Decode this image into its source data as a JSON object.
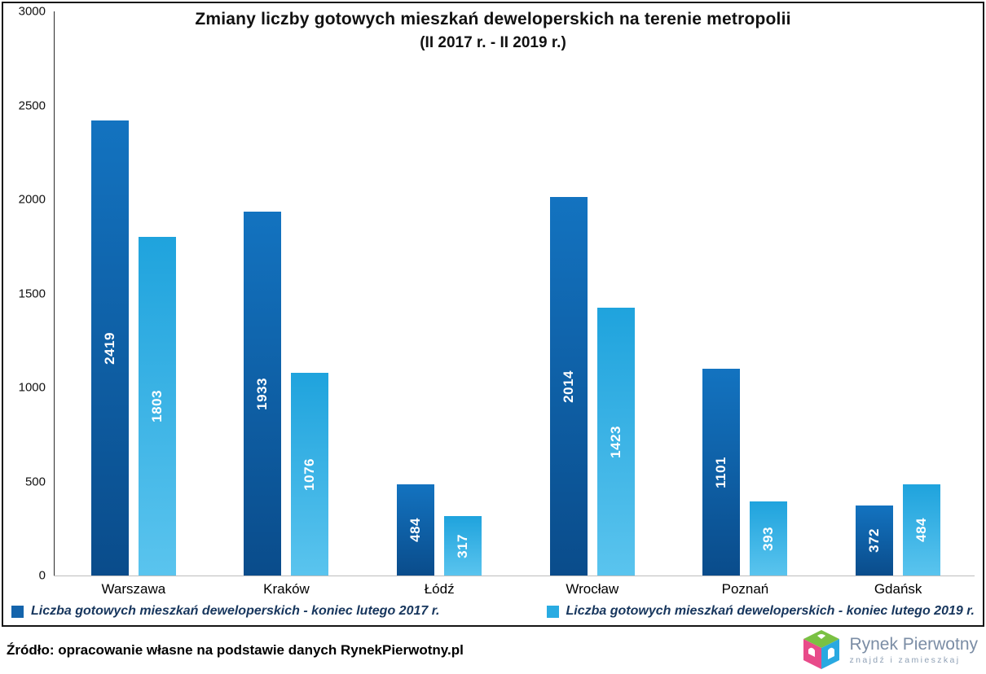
{
  "chart_data": {
    "type": "bar",
    "title": "Zmiany liczby gotowych mieszkań deweloperskich na terenie metropolii",
    "subtitle": "(II 2017 r. - II 2019 r.)",
    "categories": [
      "Warszawa",
      "Kraków",
      "Łódź",
      "Wrocław",
      "Poznań",
      "Gdańsk"
    ],
    "series": [
      {
        "name": "Liczba gotowych mieszkań deweloperskich - koniec lutego 2017 r.",
        "color": "#1464ac",
        "gradient_top": "#1373c0",
        "gradient_bottom": "#0a4c8b",
        "values": [
          2419,
          1933,
          484,
          2014,
          1101,
          372
        ]
      },
      {
        "name": "Liczba gotowych mieszkań deweloperskich - koniec lutego 2019 r.",
        "color": "#29abe2",
        "gradient_top": "#1fa3dd",
        "gradient_bottom": "#5ac4ee",
        "values": [
          1803,
          1076,
          317,
          1423,
          393,
          484
        ]
      }
    ],
    "ylim": [
      0,
      3000
    ],
    "ytick_step": 500,
    "grid": false,
    "legend_position": "bottom",
    "value_labels": "inside-vertical-white"
  },
  "footer": {
    "source": "Źródło: opracowanie własne na podstawie danych RynekPierwotny.pl",
    "logo_title": "Rynek Pierwotny",
    "logo_subtitle": "znajdź i zamieszkaj"
  }
}
